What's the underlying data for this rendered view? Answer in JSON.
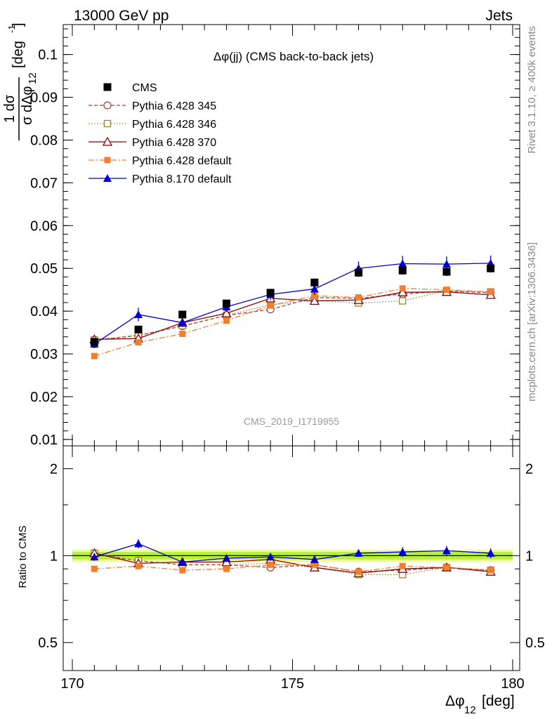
{
  "header": {
    "left": "13000 GeV pp",
    "right": "Jets"
  },
  "side_labels": {
    "rivet": "Rivet 3.1.10, ≥ 400k events",
    "mcplots": "mcplots.cern.ch [arXiv:1306.3436]"
  },
  "chart_data": [
    {
      "type": "line",
      "title": "Δφ(jj) (CMS back-to-back jets)",
      "watermark": "CMS_2019_I1719955",
      "ylabel_num": "1 dσ",
      "ylabel_den": "σ dΔφ",
      "ylabel_sub": "12",
      "ylabel_unit": "[deg",
      "ylabel_unit_sup": "-1",
      "ylabel_unit_close": "]",
      "xlim": [
        170,
        180
      ],
      "ylim": [
        0.0085,
        0.107
      ],
      "yticks": [
        0.01,
        0.02,
        0.03,
        0.04,
        0.05,
        0.06,
        0.07,
        0.08,
        0.09,
        0.1
      ],
      "ytick_labels": [
        "0.01",
        "0.02",
        "0.03",
        "0.04",
        "0.05",
        "0.06",
        "0.07",
        "0.08",
        "0.09",
        "0.1"
      ],
      "legend_position": "top-left",
      "x": [
        170.5,
        171.5,
        172.5,
        173.5,
        174.5,
        175.5,
        176.5,
        177.5,
        178.5,
        179.5
      ],
      "series": [
        {
          "name": "CMS",
          "color": "#000000",
          "marker": "square-filled",
          "line": "none",
          "values": [
            0.0328,
            0.0357,
            0.0392,
            0.0418,
            0.0443,
            0.0467,
            0.049,
            0.0495,
            0.0492,
            0.05
          ],
          "errors": [
            0.0008,
            0.0008,
            0.0008,
            0.0008,
            0.0009,
            0.0009,
            0.001,
            0.001,
            0.001,
            0.001
          ]
        },
        {
          "name": "Pythia 6.428 345",
          "color": "#b03a48",
          "marker": "circle-open",
          "line": "dashed",
          "values": [
            0.0332,
            0.0343,
            0.0365,
            0.039,
            0.0404,
            0.0432,
            0.043,
            0.044,
            0.0447,
            0.0443
          ]
        },
        {
          "name": "Pythia 6.428 346",
          "color": "#a08030",
          "marker": "square-open",
          "line": "dotted",
          "values": [
            0.0333,
            0.0344,
            0.0366,
            0.039,
            0.0415,
            0.0425,
            0.0419,
            0.0424,
            0.0448,
            0.0445
          ]
        },
        {
          "name": "Pythia 6.428 370",
          "color": "#8b0000",
          "marker": "triangle-open",
          "line": "solid",
          "values": [
            0.0334,
            0.0336,
            0.0373,
            0.0395,
            0.043,
            0.0424,
            0.0426,
            0.0444,
            0.0445,
            0.0438
          ]
        },
        {
          "name": "Pythia 6.428 default",
          "color": "#f08030",
          "marker": "square-filled-small",
          "line": "dashdot",
          "values": [
            0.0295,
            0.0327,
            0.0347,
            0.0378,
            0.0413,
            0.0436,
            0.0432,
            0.0453,
            0.045,
            0.0445
          ]
        },
        {
          "name": "Pythia 8.170 default",
          "color": "#0000cc",
          "marker": "triangle-filled",
          "line": "solid",
          "values": [
            0.0323,
            0.0392,
            0.0373,
            0.041,
            0.0439,
            0.0452,
            0.05,
            0.0511,
            0.051,
            0.0512
          ],
          "errors": [
            0.001,
            0.0016,
            0.001,
            0.0012,
            0.0013,
            0.0014,
            0.0016,
            0.0018,
            0.0018,
            0.0018
          ]
        }
      ]
    },
    {
      "type": "line",
      "ylabel": "Ratio to CMS",
      "xlabel": "Δφ",
      "xlabel_sub": "12",
      "xlabel_unit": "[deg]",
      "xlim": [
        170,
        180
      ],
      "ylim": [
        0.4,
        2.4
      ],
      "scale": "log",
      "yticks": [
        0.5,
        1,
        2
      ],
      "ytick_labels": [
        "0.5",
        "1",
        "2"
      ],
      "xticks": [
        170,
        175,
        180
      ],
      "xtick_labels": [
        "170",
        "175",
        "180"
      ],
      "band": {
        "inner": [
          0.97,
          1.03
        ],
        "outer": [
          0.95,
          1.05
        ],
        "inner_color": "#b8f040",
        "outer_color": "#f0f8a0"
      },
      "x": [
        170.5,
        171.5,
        172.5,
        173.5,
        174.5,
        175.5,
        176.5,
        177.5,
        178.5,
        179.5
      ],
      "series": [
        {
          "name": "Pythia 6.428 345",
          "values": [
            1.01,
            0.96,
            0.93,
            0.93,
            0.91,
            0.93,
            0.88,
            0.89,
            0.91,
            0.89
          ]
        },
        {
          "name": "Pythia 6.428 346",
          "values": [
            1.02,
            0.96,
            0.93,
            0.93,
            0.94,
            0.91,
            0.86,
            0.86,
            0.91,
            0.89
          ]
        },
        {
          "name": "Pythia 6.428 370",
          "values": [
            1.02,
            0.94,
            0.95,
            0.95,
            0.97,
            0.91,
            0.87,
            0.9,
            0.91,
            0.88
          ]
        },
        {
          "name": "Pythia 6.428 default",
          "values": [
            0.9,
            0.92,
            0.89,
            0.9,
            0.93,
            0.93,
            0.88,
            0.92,
            0.91,
            0.89
          ]
        },
        {
          "name": "Pythia 8.170 default",
          "values": [
            0.99,
            1.1,
            0.95,
            0.98,
            0.99,
            0.97,
            1.02,
            1.03,
            1.04,
            1.02
          ],
          "errors": [
            0.03,
            0.04,
            0.03,
            0.03,
            0.03,
            0.03,
            0.03,
            0.04,
            0.04,
            0.04
          ]
        }
      ]
    }
  ]
}
